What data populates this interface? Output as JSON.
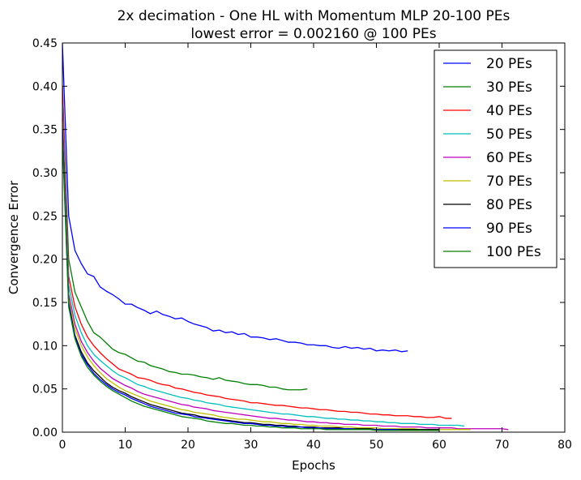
{
  "chart_data": {
    "type": "line",
    "title": "2x decimation - One HL with Momentum MLP 20-100 PEs",
    "subtitle": "lowest error = 0.002160 @ 100 PEs",
    "xlabel": "Epochs",
    "ylabel": "Convergence Error",
    "xlim": [
      0,
      80
    ],
    "ylim": [
      0,
      0.45
    ],
    "xticks": [
      0,
      10,
      20,
      30,
      40,
      50,
      60,
      70,
      80
    ],
    "xtick_labels": [
      "0",
      "10",
      "20",
      "30",
      "40",
      "50",
      "60",
      "70",
      "80"
    ],
    "yticks": [
      0,
      0.05,
      0.1,
      0.15,
      0.2,
      0.25,
      0.3,
      0.35,
      0.4,
      0.45
    ],
    "ytick_labels": [
      "0.00",
      "0.05",
      "0.10",
      "0.15",
      "0.20",
      "0.25",
      "0.30",
      "0.35",
      "0.40",
      "0.45"
    ],
    "grid": false,
    "legend_position": "top-right",
    "series": [
      {
        "name": "20 PEs",
        "color": "#0000ff",
        "x": [
          0,
          1,
          2,
          3,
          4,
          5,
          6,
          7,
          8,
          9,
          10,
          11,
          12,
          13,
          14,
          15,
          16,
          17,
          18,
          19,
          20,
          21,
          22,
          23,
          24,
          25,
          26,
          27,
          28,
          29,
          30,
          31,
          32,
          33,
          34,
          35,
          36,
          37,
          38,
          39,
          40,
          41,
          42,
          43,
          44,
          45,
          46,
          47,
          48,
          49,
          50,
          51,
          52,
          53,
          54,
          55
        ],
        "y": [
          0.45,
          0.25,
          0.21,
          0.195,
          0.183,
          0.18,
          0.168,
          0.163,
          0.159,
          0.154,
          0.148,
          0.148,
          0.144,
          0.141,
          0.137,
          0.14,
          0.136,
          0.134,
          0.131,
          0.132,
          0.128,
          0.125,
          0.123,
          0.121,
          0.117,
          0.118,
          0.115,
          0.116,
          0.113,
          0.114,
          0.11,
          0.11,
          0.109,
          0.107,
          0.108,
          0.106,
          0.104,
          0.104,
          0.103,
          0.101,
          0.101,
          0.1,
          0.1,
          0.098,
          0.097,
          0.099,
          0.097,
          0.098,
          0.096,
          0.097,
          0.094,
          0.095,
          0.094,
          0.095,
          0.093,
          0.094
        ]
      },
      {
        "name": "30 PEs",
        "color": "#008000",
        "x": [
          0,
          1,
          2,
          3,
          4,
          5,
          6,
          7,
          8,
          9,
          10,
          11,
          12,
          13,
          14,
          15,
          16,
          17,
          18,
          19,
          20,
          21,
          22,
          23,
          24,
          25,
          26,
          27,
          28,
          29,
          30,
          31,
          32,
          33,
          34,
          35,
          36,
          37,
          38,
          39
        ],
        "y": [
          0.4,
          0.2,
          0.162,
          0.145,
          0.128,
          0.115,
          0.11,
          0.103,
          0.096,
          0.092,
          0.09,
          0.086,
          0.082,
          0.081,
          0.077,
          0.075,
          0.073,
          0.07,
          0.069,
          0.067,
          0.067,
          0.066,
          0.064,
          0.063,
          0.061,
          0.063,
          0.06,
          0.059,
          0.058,
          0.056,
          0.055,
          0.055,
          0.054,
          0.052,
          0.052,
          0.05,
          0.049,
          0.049,
          0.049,
          0.05
        ]
      },
      {
        "name": "40 PEs",
        "color": "#ff0000",
        "x": [
          0,
          1,
          2,
          3,
          4,
          5,
          6,
          7,
          8,
          9,
          10,
          11,
          12,
          13,
          14,
          15,
          16,
          17,
          18,
          19,
          20,
          21,
          22,
          23,
          24,
          25,
          26,
          27,
          28,
          29,
          30,
          31,
          32,
          33,
          34,
          35,
          36,
          37,
          38,
          39,
          40,
          41,
          42,
          43,
          44,
          45,
          46,
          47,
          48,
          49,
          50,
          51,
          52,
          53,
          54,
          55,
          56,
          57,
          58,
          59,
          60,
          61,
          62
        ],
        "y": [
          0.4,
          0.18,
          0.145,
          0.125,
          0.11,
          0.1,
          0.092,
          0.085,
          0.079,
          0.073,
          0.07,
          0.067,
          0.063,
          0.062,
          0.06,
          0.057,
          0.055,
          0.054,
          0.051,
          0.05,
          0.048,
          0.046,
          0.045,
          0.043,
          0.042,
          0.041,
          0.039,
          0.038,
          0.037,
          0.036,
          0.034,
          0.034,
          0.033,
          0.032,
          0.031,
          0.031,
          0.03,
          0.029,
          0.028,
          0.028,
          0.027,
          0.026,
          0.026,
          0.025,
          0.024,
          0.024,
          0.023,
          0.023,
          0.022,
          0.021,
          0.021,
          0.02,
          0.02,
          0.019,
          0.019,
          0.019,
          0.018,
          0.018,
          0.017,
          0.017,
          0.018,
          0.016,
          0.016
        ]
      },
      {
        "name": "50 PEs",
        "color": "#00bfbf",
        "x": [
          0,
          1,
          2,
          3,
          4,
          5,
          6,
          7,
          8,
          9,
          10,
          11,
          12,
          13,
          14,
          15,
          16,
          17,
          18,
          19,
          20,
          21,
          22,
          23,
          24,
          25,
          26,
          27,
          28,
          29,
          30,
          31,
          32,
          33,
          34,
          35,
          36,
          37,
          38,
          39,
          40,
          41,
          42,
          43,
          44,
          45,
          46,
          47,
          48,
          49,
          50,
          51,
          52,
          53,
          54,
          55,
          56,
          57,
          58,
          59,
          60,
          61,
          62,
          63,
          64
        ],
        "y": [
          0.38,
          0.17,
          0.135,
          0.115,
          0.1,
          0.09,
          0.083,
          0.077,
          0.071,
          0.066,
          0.063,
          0.059,
          0.055,
          0.053,
          0.05,
          0.048,
          0.046,
          0.044,
          0.042,
          0.04,
          0.039,
          0.037,
          0.036,
          0.034,
          0.033,
          0.032,
          0.03,
          0.029,
          0.028,
          0.027,
          0.026,
          0.025,
          0.024,
          0.023,
          0.022,
          0.021,
          0.021,
          0.02,
          0.019,
          0.018,
          0.018,
          0.017,
          0.016,
          0.016,
          0.015,
          0.015,
          0.014,
          0.014,
          0.013,
          0.013,
          0.012,
          0.012,
          0.011,
          0.011,
          0.01,
          0.01,
          0.01,
          0.009,
          0.009,
          0.009,
          0.008,
          0.008,
          0.008,
          0.008,
          0.007
        ]
      },
      {
        "name": "60 PEs",
        "color": "#bf00bf",
        "x": [
          0,
          1,
          2,
          3,
          4,
          5,
          6,
          7,
          8,
          9,
          10,
          11,
          12,
          13,
          14,
          15,
          16,
          17,
          18,
          19,
          20,
          21,
          22,
          23,
          24,
          25,
          26,
          27,
          28,
          29,
          30,
          31,
          32,
          33,
          34,
          35,
          36,
          37,
          38,
          39,
          40,
          41,
          42,
          43,
          44,
          45,
          46,
          47,
          48,
          49,
          50,
          51,
          52,
          53,
          54,
          55,
          56,
          57,
          58,
          59,
          60,
          61,
          62,
          63,
          64,
          65,
          66,
          67,
          68,
          69,
          70,
          71
        ],
        "y": [
          0.37,
          0.16,
          0.125,
          0.105,
          0.092,
          0.082,
          0.074,
          0.068,
          0.062,
          0.058,
          0.054,
          0.051,
          0.047,
          0.044,
          0.042,
          0.04,
          0.038,
          0.036,
          0.034,
          0.032,
          0.031,
          0.029,
          0.028,
          0.027,
          0.025,
          0.024,
          0.023,
          0.022,
          0.021,
          0.02,
          0.019,
          0.018,
          0.017,
          0.016,
          0.016,
          0.015,
          0.014,
          0.014,
          0.013,
          0.012,
          0.012,
          0.011,
          0.011,
          0.01,
          0.01,
          0.009,
          0.009,
          0.009,
          0.008,
          0.008,
          0.008,
          0.007,
          0.007,
          0.007,
          0.006,
          0.006,
          0.006,
          0.006,
          0.005,
          0.005,
          0.005,
          0.005,
          0.005,
          0.004,
          0.004,
          0.004,
          0.004,
          0.004,
          0.004,
          0.004,
          0.004,
          0.003
        ]
      },
      {
        "name": "70 PEs",
        "color": "#bfbf00",
        "x": [
          0,
          1,
          2,
          3,
          4,
          5,
          6,
          7,
          8,
          9,
          10,
          11,
          12,
          13,
          14,
          15,
          16,
          17,
          18,
          19,
          20,
          21,
          22,
          23,
          24,
          25,
          26,
          27,
          28,
          29,
          30,
          31,
          32,
          33,
          34,
          35,
          36,
          37,
          38,
          39,
          40,
          41,
          42,
          43,
          44,
          45,
          46,
          47,
          48,
          49,
          50,
          51,
          52,
          53,
          54,
          55,
          56,
          57,
          58,
          59,
          60,
          61,
          62,
          63,
          64,
          65
        ],
        "y": [
          0.36,
          0.155,
          0.12,
          0.1,
          0.087,
          0.077,
          0.069,
          0.062,
          0.057,
          0.052,
          0.048,
          0.045,
          0.042,
          0.039,
          0.036,
          0.034,
          0.032,
          0.03,
          0.028,
          0.026,
          0.025,
          0.023,
          0.022,
          0.021,
          0.02,
          0.018,
          0.017,
          0.016,
          0.015,
          0.015,
          0.014,
          0.013,
          0.012,
          0.012,
          0.011,
          0.01,
          0.01,
          0.009,
          0.009,
          0.008,
          0.008,
          0.007,
          0.007,
          0.007,
          0.006,
          0.006,
          0.006,
          0.005,
          0.005,
          0.005,
          0.005,
          0.004,
          0.004,
          0.004,
          0.004,
          0.004,
          0.004,
          0.003,
          0.003,
          0.003,
          0.003,
          0.003,
          0.003,
          0.003,
          0.003,
          0.003
        ]
      },
      {
        "name": "80 PEs",
        "color": "#000000",
        "x": [
          0,
          1,
          2,
          3,
          4,
          5,
          6,
          7,
          8,
          9,
          10,
          11,
          12,
          13,
          14,
          15,
          16,
          17,
          18,
          19,
          20,
          21,
          22,
          23,
          24,
          25,
          26,
          27,
          28,
          29,
          30,
          31,
          32,
          33,
          34,
          35,
          36,
          37,
          38,
          39,
          40,
          41,
          42,
          43,
          44,
          45,
          46,
          47,
          48,
          49,
          50,
          51,
          52,
          53,
          54,
          55,
          56,
          57,
          58,
          59,
          60
        ],
        "y": [
          0.35,
          0.15,
          0.112,
          0.093,
          0.08,
          0.071,
          0.064,
          0.057,
          0.052,
          0.048,
          0.045,
          0.041,
          0.038,
          0.035,
          0.032,
          0.03,
          0.028,
          0.026,
          0.024,
          0.022,
          0.021,
          0.02,
          0.018,
          0.017,
          0.016,
          0.015,
          0.014,
          0.013,
          0.012,
          0.011,
          0.011,
          0.01,
          0.009,
          0.009,
          0.008,
          0.008,
          0.007,
          0.007,
          0.006,
          0.006,
          0.006,
          0.005,
          0.005,
          0.005,
          0.005,
          0.004,
          0.004,
          0.004,
          0.004,
          0.004,
          0.003,
          0.003,
          0.003,
          0.003,
          0.003,
          0.003,
          0.003,
          0.003,
          0.003,
          0.003,
          0.003
        ]
      },
      {
        "name": "90 PEs",
        "color": "#0000ff",
        "x": [
          0,
          1,
          2,
          3,
          4,
          5,
          6,
          7,
          8,
          9,
          10,
          11,
          12,
          13,
          14,
          15,
          16,
          17,
          18,
          19,
          20,
          21,
          22,
          23,
          24,
          25,
          26,
          27,
          28,
          29,
          30,
          31,
          32,
          33,
          34,
          35,
          36,
          37,
          38,
          39,
          40,
          41,
          42,
          43,
          44,
          45,
          46,
          47,
          48,
          49,
          50,
          51,
          52,
          53,
          54,
          55
        ],
        "y": [
          0.35,
          0.15,
          0.11,
          0.09,
          0.078,
          0.068,
          0.061,
          0.055,
          0.05,
          0.046,
          0.043,
          0.039,
          0.036,
          0.033,
          0.03,
          0.028,
          0.026,
          0.024,
          0.022,
          0.021,
          0.02,
          0.018,
          0.017,
          0.016,
          0.015,
          0.014,
          0.013,
          0.012,
          0.011,
          0.01,
          0.01,
          0.009,
          0.008,
          0.008,
          0.007,
          0.007,
          0.006,
          0.006,
          0.006,
          0.005,
          0.005,
          0.005,
          0.004,
          0.004,
          0.004,
          0.004,
          0.004,
          0.003,
          0.003,
          0.003,
          0.003,
          0.003,
          0.003,
          0.003,
          0.002,
          0.002
        ]
      },
      {
        "name": "100 PEs",
        "color": "#008000",
        "x": [
          0,
          1,
          2,
          3,
          4,
          5,
          6,
          7,
          8,
          9,
          10,
          11,
          12,
          13,
          14,
          15,
          16,
          17,
          18,
          19,
          20,
          21,
          22,
          23,
          24,
          25,
          26,
          27,
          28,
          29,
          30,
          31,
          32,
          33,
          34,
          35,
          36,
          37,
          38,
          39,
          40,
          41,
          42,
          43,
          44,
          45,
          46,
          47,
          48,
          49,
          50,
          51,
          52,
          53,
          54,
          55,
          56,
          57,
          58,
          59,
          60
        ],
        "y": [
          0.34,
          0.145,
          0.108,
          0.088,
          0.075,
          0.066,
          0.059,
          0.053,
          0.048,
          0.044,
          0.04,
          0.036,
          0.033,
          0.03,
          0.028,
          0.026,
          0.024,
          0.022,
          0.02,
          0.018,
          0.017,
          0.016,
          0.015,
          0.013,
          0.012,
          0.011,
          0.01,
          0.01,
          0.009,
          0.008,
          0.008,
          0.007,
          0.007,
          0.006,
          0.006,
          0.005,
          0.005,
          0.005,
          0.004,
          0.004,
          0.004,
          0.004,
          0.003,
          0.003,
          0.003,
          0.003,
          0.003,
          0.003,
          0.003,
          0.003,
          0.002,
          0.002,
          0.002,
          0.002,
          0.002,
          0.002,
          0.002,
          0.002,
          0.002,
          0.002,
          0.002
        ]
      }
    ]
  }
}
